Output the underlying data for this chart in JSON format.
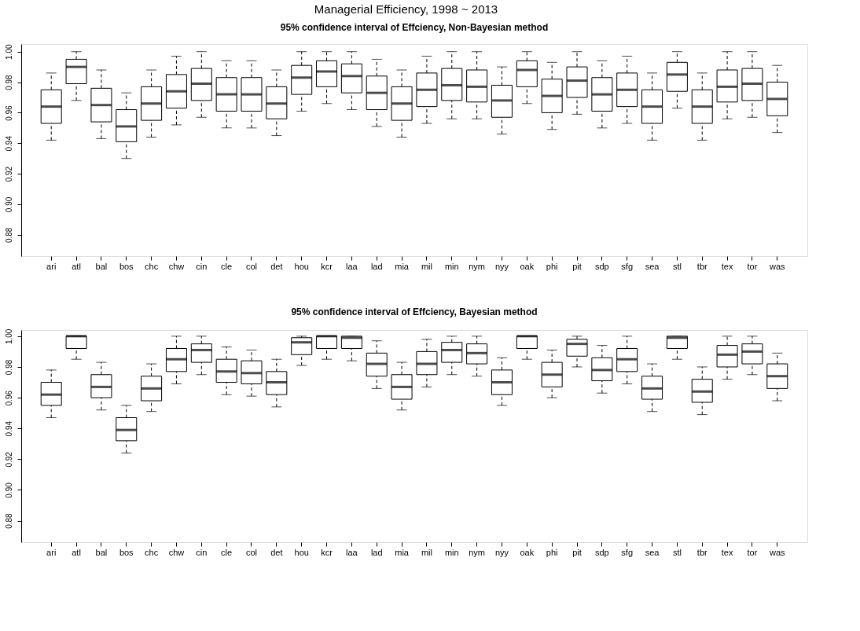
{
  "chart_data": [
    {
      "type": "box",
      "title": "Managerial Efficiency, 1998 ~ 2013",
      "subtitle": "95% confidence interval of Effciency, Non-Bayesian method",
      "categories": [
        "ari",
        "atl",
        "bal",
        "bos",
        "chc",
        "chw",
        "cin",
        "cle",
        "col",
        "det",
        "hou",
        "kcr",
        "laa",
        "lad",
        "mia",
        "mil",
        "min",
        "nym",
        "nyy",
        "oak",
        "phi",
        "pit",
        "sdp",
        "sfg",
        "sea",
        "stl",
        "tbr",
        "tex",
        "tor",
        "was"
      ],
      "ylim": [
        0.866,
        1.005
      ],
      "yticks": [
        {
          "value": 0.88,
          "label": "0.88"
        },
        {
          "value": 0.9,
          "label": "0.90"
        },
        {
          "value": 0.92,
          "label": "0.92"
        },
        {
          "value": 0.94,
          "label": "0.94"
        },
        {
          "value": 0.96,
          "label": "0.96"
        },
        {
          "value": 0.98,
          "label": "0.98"
        },
        {
          "value": 1.0,
          "label": "1.00"
        }
      ],
      "grid": false,
      "boxes": [
        {
          "low": 0.942,
          "q1": 0.953,
          "median": 0.964,
          "q3": 0.975,
          "high": 0.986
        },
        {
          "low": 0.968,
          "q1": 0.979,
          "median": 0.99,
          "q3": 0.995,
          "high": 1.0
        },
        {
          "low": 0.943,
          "q1": 0.954,
          "median": 0.965,
          "q3": 0.976,
          "high": 0.988
        },
        {
          "low": 0.93,
          "q1": 0.941,
          "median": 0.951,
          "q3": 0.962,
          "high": 0.973
        },
        {
          "low": 0.944,
          "q1": 0.955,
          "median": 0.966,
          "q3": 0.977,
          "high": 0.988
        },
        {
          "low": 0.952,
          "q1": 0.963,
          "median": 0.974,
          "q3": 0.985,
          "high": 0.997
        },
        {
          "low": 0.957,
          "q1": 0.968,
          "median": 0.979,
          "q3": 0.989,
          "high": 1.0
        },
        {
          "low": 0.95,
          "q1": 0.961,
          "median": 0.972,
          "q3": 0.983,
          "high": 0.994
        },
        {
          "low": 0.95,
          "q1": 0.961,
          "median": 0.972,
          "q3": 0.983,
          "high": 0.994
        },
        {
          "low": 0.945,
          "q1": 0.956,
          "median": 0.966,
          "q3": 0.977,
          "high": 0.988
        },
        {
          "low": 0.961,
          "q1": 0.972,
          "median": 0.983,
          "q3": 0.991,
          "high": 1.0
        },
        {
          "low": 0.966,
          "q1": 0.977,
          "median": 0.987,
          "q3": 0.994,
          "high": 1.0
        },
        {
          "low": 0.962,
          "q1": 0.973,
          "median": 0.984,
          "q3": 0.992,
          "high": 1.0
        },
        {
          "low": 0.951,
          "q1": 0.962,
          "median": 0.973,
          "q3": 0.984,
          "high": 0.995
        },
        {
          "low": 0.944,
          "q1": 0.955,
          "median": 0.966,
          "q3": 0.977,
          "high": 0.988
        },
        {
          "low": 0.953,
          "q1": 0.964,
          "median": 0.975,
          "q3": 0.986,
          "high": 0.997
        },
        {
          "low": 0.956,
          "q1": 0.968,
          "median": 0.978,
          "q3": 0.989,
          "high": 1.0
        },
        {
          "low": 0.956,
          "q1": 0.967,
          "median": 0.977,
          "q3": 0.988,
          "high": 1.0
        },
        {
          "low": 0.946,
          "q1": 0.957,
          "median": 0.968,
          "q3": 0.978,
          "high": 0.99
        },
        {
          "low": 0.966,
          "q1": 0.977,
          "median": 0.988,
          "q3": 0.994,
          "high": 1.0
        },
        {
          "low": 0.949,
          "q1": 0.96,
          "median": 0.971,
          "q3": 0.982,
          "high": 0.993
        },
        {
          "low": 0.959,
          "q1": 0.97,
          "median": 0.981,
          "q3": 0.99,
          "high": 1.0
        },
        {
          "low": 0.95,
          "q1": 0.961,
          "median": 0.972,
          "q3": 0.983,
          "high": 0.994
        },
        {
          "low": 0.953,
          "q1": 0.964,
          "median": 0.975,
          "q3": 0.986,
          "high": 0.997
        },
        {
          "low": 0.942,
          "q1": 0.953,
          "median": 0.964,
          "q3": 0.975,
          "high": 0.986
        },
        {
          "low": 0.963,
          "q1": 0.974,
          "median": 0.985,
          "q3": 0.993,
          "high": 1.0
        },
        {
          "low": 0.942,
          "q1": 0.953,
          "median": 0.964,
          "q3": 0.975,
          "high": 0.986
        },
        {
          "low": 0.956,
          "q1": 0.967,
          "median": 0.977,
          "q3": 0.988,
          "high": 1.0
        },
        {
          "low": 0.957,
          "q1": 0.968,
          "median": 0.979,
          "q3": 0.989,
          "high": 1.0
        },
        {
          "low": 0.947,
          "q1": 0.958,
          "median": 0.969,
          "q3": 0.98,
          "high": 0.991
        }
      ]
    },
    {
      "type": "box",
      "title": "95% confidence interval of Effciency, Bayesian method",
      "categories": [
        "ari",
        "atl",
        "bal",
        "bos",
        "chc",
        "chw",
        "cin",
        "cle",
        "col",
        "det",
        "hou",
        "kcr",
        "laa",
        "lad",
        "mia",
        "mil",
        "min",
        "nym",
        "nyy",
        "oak",
        "phi",
        "pit",
        "sdp",
        "sfg",
        "sea",
        "stl",
        "tbr",
        "tex",
        "tor",
        "was"
      ],
      "ylim": [
        0.866,
        1.004
      ],
      "yticks": [
        {
          "value": 0.88,
          "label": "0.88"
        },
        {
          "value": 0.9,
          "label": "0.90"
        },
        {
          "value": 0.92,
          "label": "0.92"
        },
        {
          "value": 0.94,
          "label": "0.94"
        },
        {
          "value": 0.96,
          "label": "0.96"
        },
        {
          "value": 0.98,
          "label": "0.98"
        },
        {
          "value": 1.0,
          "label": "1.00"
        }
      ],
      "grid": false,
      "boxes": [
        {
          "low": 0.947,
          "q1": 0.955,
          "median": 0.962,
          "q3": 0.97,
          "high": 0.978
        },
        {
          "low": 0.985,
          "q1": 0.992,
          "median": 1.0,
          "q3": 1.0,
          "high": 1.0
        },
        {
          "low": 0.952,
          "q1": 0.96,
          "median": 0.967,
          "q3": 0.975,
          "high": 0.983
        },
        {
          "low": 0.924,
          "q1": 0.932,
          "median": 0.939,
          "q3": 0.947,
          "high": 0.955
        },
        {
          "low": 0.951,
          "q1": 0.958,
          "median": 0.966,
          "q3": 0.974,
          "high": 0.982
        },
        {
          "low": 0.969,
          "q1": 0.977,
          "median": 0.985,
          "q3": 0.992,
          "high": 1.0
        },
        {
          "low": 0.975,
          "q1": 0.983,
          "median": 0.991,
          "q3": 0.995,
          "high": 1.0
        },
        {
          "low": 0.962,
          "q1": 0.97,
          "median": 0.977,
          "q3": 0.985,
          "high": 0.993
        },
        {
          "low": 0.961,
          "q1": 0.969,
          "median": 0.976,
          "q3": 0.984,
          "high": 0.991
        },
        {
          "low": 0.954,
          "q1": 0.962,
          "median": 0.97,
          "q3": 0.977,
          "high": 0.985
        },
        {
          "low": 0.981,
          "q1": 0.988,
          "median": 0.996,
          "q3": 0.999,
          "high": 1.0
        },
        {
          "low": 0.985,
          "q1": 0.992,
          "median": 1.0,
          "q3": 1.0,
          "high": 1.0
        },
        {
          "low": 0.984,
          "q1": 0.992,
          "median": 0.999,
          "q3": 1.0,
          "high": 1.0
        },
        {
          "low": 0.966,
          "q1": 0.974,
          "median": 0.982,
          "q3": 0.989,
          "high": 0.997
        },
        {
          "low": 0.952,
          "q1": 0.959,
          "median": 0.967,
          "q3": 0.975,
          "high": 0.983
        },
        {
          "low": 0.967,
          "q1": 0.975,
          "median": 0.982,
          "q3": 0.99,
          "high": 0.998
        },
        {
          "low": 0.975,
          "q1": 0.983,
          "median": 0.991,
          "q3": 0.996,
          "high": 1.0
        },
        {
          "low": 0.974,
          "q1": 0.982,
          "median": 0.989,
          "q3": 0.995,
          "high": 1.0
        },
        {
          "low": 0.955,
          "q1": 0.962,
          "median": 0.97,
          "q3": 0.978,
          "high": 0.986
        },
        {
          "low": 0.985,
          "q1": 0.992,
          "median": 1.0,
          "q3": 1.0,
          "high": 1.0
        },
        {
          "low": 0.96,
          "q1": 0.967,
          "median": 0.975,
          "q3": 0.983,
          "high": 0.991
        },
        {
          "low": 0.98,
          "q1": 0.987,
          "median": 0.995,
          "q3": 0.998,
          "high": 1.0
        },
        {
          "low": 0.963,
          "q1": 0.971,
          "median": 0.978,
          "q3": 0.986,
          "high": 0.994
        },
        {
          "low": 0.969,
          "q1": 0.977,
          "median": 0.985,
          "q3": 0.992,
          "high": 1.0
        },
        {
          "low": 0.951,
          "q1": 0.959,
          "median": 0.966,
          "q3": 0.974,
          "high": 0.982
        },
        {
          "low": 0.985,
          "q1": 0.992,
          "median": 0.999,
          "q3": 1.0,
          "high": 1.0
        },
        {
          "low": 0.949,
          "q1": 0.957,
          "median": 0.964,
          "q3": 0.972,
          "high": 0.98
        },
        {
          "low": 0.972,
          "q1": 0.98,
          "median": 0.988,
          "q3": 0.994,
          "high": 1.0
        },
        {
          "low": 0.975,
          "q1": 0.982,
          "median": 0.99,
          "q3": 0.995,
          "high": 1.0
        },
        {
          "low": 0.958,
          "q1": 0.966,
          "median": 0.974,
          "q3": 0.982,
          "high": 0.989
        }
      ]
    }
  ]
}
